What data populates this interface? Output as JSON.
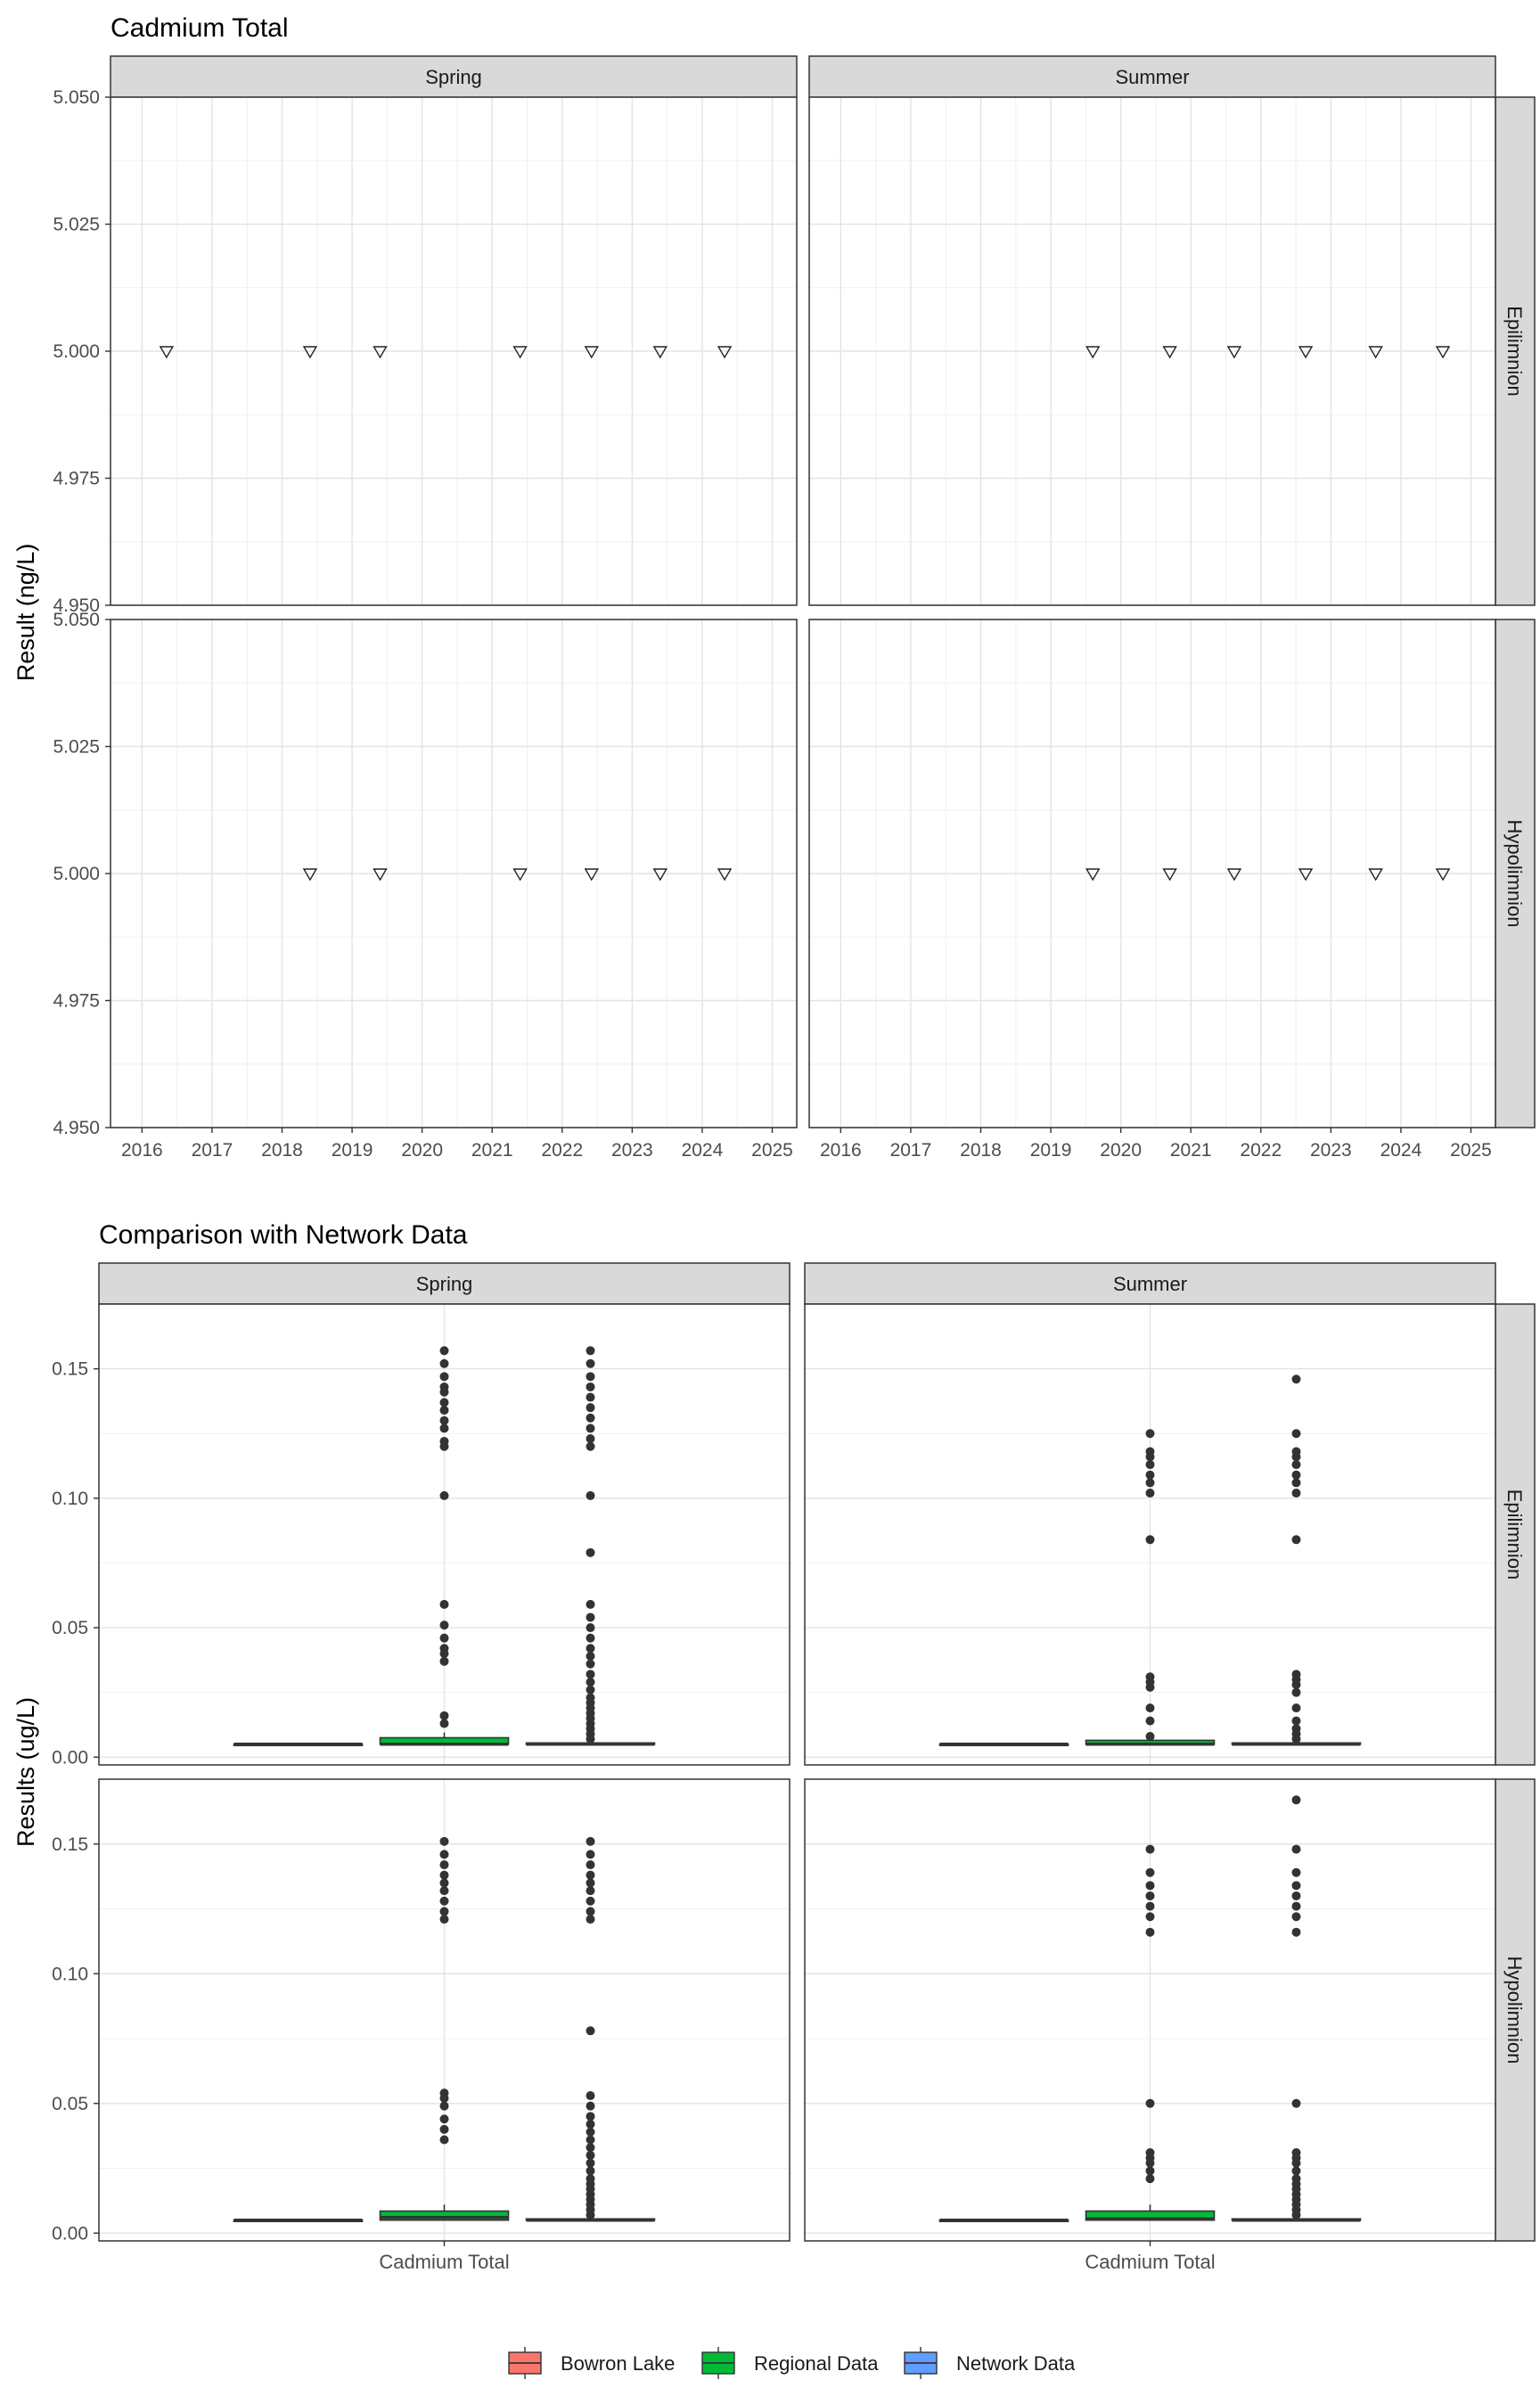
{
  "chart_data": [
    {
      "type": "scatter",
      "title": "Cadmium Total",
      "xlabel": "",
      "ylabel": "Result (ng/L)",
      "columns": [
        "Spring",
        "Summer"
      ],
      "rows": [
        "Epilimnion",
        "Hypolimnion"
      ],
      "xlim": [
        2015.55,
        2025.35
      ],
      "ylim": [
        4.95,
        5.05
      ],
      "x_ticks": [
        "2016",
        "2017",
        "2018",
        "2019",
        "2020",
        "2021",
        "2022",
        "2023",
        "2024",
        "2025"
      ],
      "y_ticks": [
        "4.950",
        "4.975",
        "5.000",
        "5.025",
        "5.050"
      ],
      "marker": "open-down-triangle",
      "grid": true,
      "panels": [
        {
          "column": "Spring",
          "row": "Epilimnion",
          "points": [
            {
              "x": 2016.35,
              "y": 5.0
            },
            {
              "x": 2018.4,
              "y": 5.0
            },
            {
              "x": 2019.4,
              "y": 5.0
            },
            {
              "x": 2021.4,
              "y": 5.0
            },
            {
              "x": 2022.42,
              "y": 5.0
            },
            {
              "x": 2023.4,
              "y": 5.0
            },
            {
              "x": 2024.32,
              "y": 5.0
            }
          ]
        },
        {
          "column": "Summer",
          "row": "Epilimnion",
          "points": [
            {
              "x": 2019.6,
              "y": 5.0
            },
            {
              "x": 2020.7,
              "y": 5.0
            },
            {
              "x": 2021.62,
              "y": 5.0
            },
            {
              "x": 2022.64,
              "y": 5.0
            },
            {
              "x": 2023.64,
              "y": 5.0
            },
            {
              "x": 2024.6,
              "y": 5.0
            }
          ]
        },
        {
          "column": "Spring",
          "row": "Hypolimnion",
          "points": [
            {
              "x": 2018.4,
              "y": 5.0
            },
            {
              "x": 2019.4,
              "y": 5.0
            },
            {
              "x": 2021.4,
              "y": 5.0
            },
            {
              "x": 2022.42,
              "y": 5.0
            },
            {
              "x": 2023.4,
              "y": 5.0
            },
            {
              "x": 2024.32,
              "y": 5.0
            }
          ]
        },
        {
          "column": "Summer",
          "row": "Hypolimnion",
          "points": [
            {
              "x": 2019.6,
              "y": 5.0
            },
            {
              "x": 2020.7,
              "y": 5.0
            },
            {
              "x": 2021.62,
              "y": 5.0
            },
            {
              "x": 2022.64,
              "y": 5.0
            },
            {
              "x": 2023.64,
              "y": 5.0
            },
            {
              "x": 2024.6,
              "y": 5.0
            }
          ]
        }
      ]
    },
    {
      "type": "box",
      "title": "Comparison with Network Data",
      "xlabel": "",
      "ylabel": "Results (ug/L)",
      "columns": [
        "Spring",
        "Summer"
      ],
      "rows": [
        "Epilimnion",
        "Hypolimnion"
      ],
      "categories": [
        "Cadmium Total"
      ],
      "ylim": [
        -0.003,
        0.175
      ],
      "y_ticks": [
        "0.00",
        "0.05",
        "0.10",
        "0.15"
      ],
      "grid": true,
      "legend": {
        "position": "bottom",
        "entries": [
          {
            "name": "Bowron Lake",
            "color": "#F8766D"
          },
          {
            "name": "Regional Data",
            "color": "#00BA38"
          },
          {
            "name": "Network Data",
            "color": "#619CFF"
          }
        ]
      },
      "panels": [
        {
          "column": "Spring",
          "row": "Epilimnion",
          "boxes": [
            {
              "group": "Bowron Lake",
              "min": 0.005,
              "q1": 0.005,
              "median": 0.005,
              "q3": 0.005,
              "max": 0.005,
              "outliers": []
            },
            {
              "group": "Regional Data",
              "min": 0.005,
              "q1": 0.005,
              "median": 0.005,
              "q3": 0.0075,
              "max": 0.0095,
              "outliers": [
                0.013,
                0.016,
                0.037,
                0.04,
                0.042,
                0.046,
                0.051,
                0.059,
                0.101,
                0.12,
                0.122,
                0.127,
                0.13,
                0.134,
                0.137,
                0.141,
                0.143,
                0.147,
                0.152,
                0.157
              ]
            },
            {
              "group": "Network Data",
              "min": 0.005,
              "q1": 0.005,
              "median": 0.005,
              "q3": 0.0055,
              "max": 0.006,
              "outliers": [
                0.007,
                0.009,
                0.011,
                0.013,
                0.015,
                0.017,
                0.019,
                0.021,
                0.023,
                0.026,
                0.029,
                0.032,
                0.036,
                0.039,
                0.042,
                0.046,
                0.05,
                0.054,
                0.059,
                0.079,
                0.101,
                0.12,
                0.123,
                0.127,
                0.131,
                0.135,
                0.139,
                0.143,
                0.147,
                0.152,
                0.157
              ]
            }
          ]
        },
        {
          "column": "Summer",
          "row": "Epilimnion",
          "boxes": [
            {
              "group": "Bowron Lake",
              "min": 0.005,
              "q1": 0.005,
              "median": 0.005,
              "q3": 0.005,
              "max": 0.005,
              "outliers": []
            },
            {
              "group": "Regional Data",
              "min": 0.005,
              "q1": 0.005,
              "median": 0.005,
              "q3": 0.0065,
              "max": 0.008,
              "outliers": [
                0.008,
                0.014,
                0.019,
                0.027,
                0.029,
                0.031,
                0.084,
                0.102,
                0.106,
                0.109,
                0.113,
                0.116,
                0.118,
                0.125
              ]
            },
            {
              "group": "Network Data",
              "min": 0.005,
              "q1": 0.005,
              "median": 0.005,
              "q3": 0.0055,
              "max": 0.006,
              "outliers": [
                0.007,
                0.009,
                0.011,
                0.014,
                0.019,
                0.025,
                0.028,
                0.03,
                0.032,
                0.084,
                0.102,
                0.106,
                0.109,
                0.113,
                0.116,
                0.118,
                0.125,
                0.146
              ]
            }
          ]
        },
        {
          "column": "Spring",
          "row": "Hypolimnion",
          "boxes": [
            {
              "group": "Bowron Lake",
              "min": 0.005,
              "q1": 0.005,
              "median": 0.005,
              "q3": 0.005,
              "max": 0.005,
              "outliers": []
            },
            {
              "group": "Regional Data",
              "min": 0.005,
              "q1": 0.005,
              "median": 0.006,
              "q3": 0.0085,
              "max": 0.011,
              "outliers": [
                0.036,
                0.04,
                0.044,
                0.049,
                0.052,
                0.054,
                0.121,
                0.124,
                0.128,
                0.132,
                0.135,
                0.138,
                0.142,
                0.146,
                0.151
              ]
            },
            {
              "group": "Network Data",
              "min": 0.005,
              "q1": 0.005,
              "median": 0.005,
              "q3": 0.0055,
              "max": 0.006,
              "outliers": [
                0.007,
                0.009,
                0.011,
                0.013,
                0.015,
                0.017,
                0.019,
                0.021,
                0.024,
                0.027,
                0.03,
                0.033,
                0.036,
                0.039,
                0.042,
                0.045,
                0.049,
                0.053,
                0.078,
                0.121,
                0.124,
                0.128,
                0.132,
                0.135,
                0.138,
                0.142,
                0.146,
                0.151
              ]
            }
          ]
        },
        {
          "column": "Summer",
          "row": "Hypolimnion",
          "boxes": [
            {
              "group": "Bowron Lake",
              "min": 0.005,
              "q1": 0.005,
              "median": 0.005,
              "q3": 0.005,
              "max": 0.005,
              "outliers": []
            },
            {
              "group": "Regional Data",
              "min": 0.005,
              "q1": 0.005,
              "median": 0.0055,
              "q3": 0.0085,
              "max": 0.011,
              "outliers": [
                0.021,
                0.024,
                0.027,
                0.029,
                0.031,
                0.05,
                0.116,
                0.122,
                0.126,
                0.13,
                0.134,
                0.139,
                0.148
              ]
            },
            {
              "group": "Network Data",
              "min": 0.005,
              "q1": 0.005,
              "median": 0.005,
              "q3": 0.0055,
              "max": 0.006,
              "outliers": [
                0.007,
                0.009,
                0.011,
                0.013,
                0.015,
                0.017,
                0.019,
                0.021,
                0.024,
                0.027,
                0.029,
                0.031,
                0.05,
                0.116,
                0.122,
                0.126,
                0.13,
                0.134,
                0.139,
                0.148,
                0.167
              ]
            }
          ]
        }
      ]
    }
  ]
}
